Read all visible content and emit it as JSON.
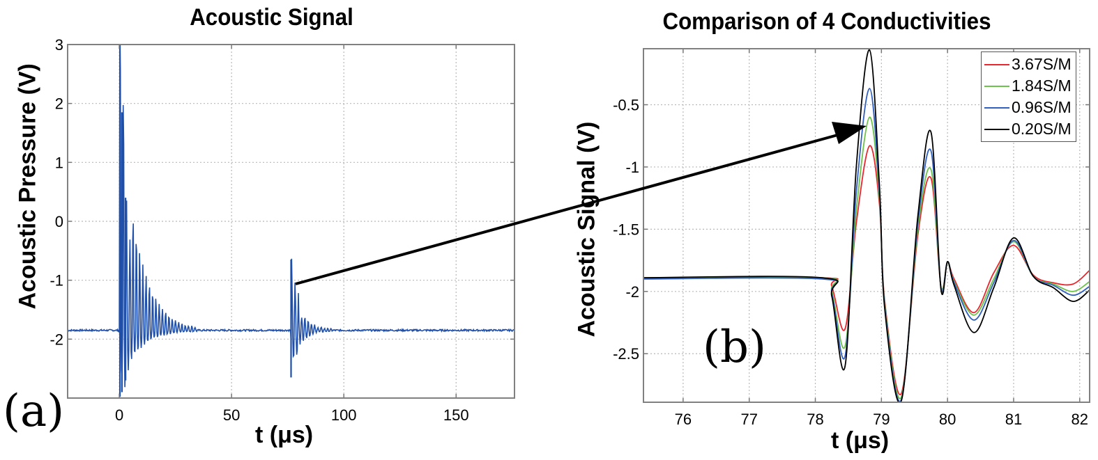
{
  "figure": {
    "panel_a_letter": "(a)",
    "panel_b_letter": "(b)"
  },
  "panel_a": {
    "title": "Acoustic Signal",
    "xlabel": "t (μs)",
    "ylabel": "Acoustic Pressure (V)"
  },
  "panel_b": {
    "title": "Comparison of 4 Conductivities",
    "xlabel": "t (μs)",
    "ylabel": "Acoustic Signal (V)",
    "legend": [
      {
        "label": "3.67S/M",
        "color": "#e8262d"
      },
      {
        "label": "1.84S/M",
        "color": "#6cc24a"
      },
      {
        "label": "0.96S/M",
        "color": "#2f5fbf"
      },
      {
        "label": "0.20S/M",
        "color": "#000000"
      }
    ]
  },
  "annotation": {
    "type": "arrow",
    "from_panel": "a",
    "from_point_us": 76.5,
    "to_panel": "b",
    "description": "zoom of echo burst near t = 77–82 μs"
  },
  "chart_data": [
    {
      "type": "line",
      "title": "Acoustic Signal",
      "xlabel": "t (μs)",
      "ylabel": "Acoustic Pressure (V)",
      "xlim": [
        -23,
        176
      ],
      "ylim": [
        -3,
        3
      ],
      "xticks": [
        0,
        50,
        100,
        150
      ],
      "yticks": [
        -2,
        -1,
        0,
        1,
        2,
        3
      ],
      "grid": true,
      "color": "#1f4fa8",
      "baseline": -1.85,
      "bursts": [
        {
          "onset": 0.0,
          "peak_max": 3.0,
          "peak_min": -2.98,
          "secondary_peaks": [
            1.85,
            0.45,
            -0.2
          ],
          "decay_end": 35
        },
        {
          "onset": 76.5,
          "peak_max": -0.65,
          "peak_min": -2.65,
          "decay_end": 95
        }
      ],
      "series": [
        {
          "name": "Acoustic pressure",
          "color": "#1f4fa8"
        }
      ]
    },
    {
      "type": "line",
      "title": "Comparison of 4 Conductivities",
      "xlabel": "t (μs)",
      "ylabel": "Acoustic Signal (V)",
      "xlim": [
        75.4,
        82.15
      ],
      "ylim": [
        -2.89,
        -0.05
      ],
      "xticks": [
        76,
        77,
        78,
        79,
        80,
        81,
        82
      ],
      "yticks": [
        -0.5,
        -1,
        -1.5,
        -2,
        -2.5
      ],
      "ytick_labels": [
        "-0.5",
        "-1",
        "-1.5",
        "-2",
        "-2.5"
      ],
      "grid": true,
      "legend_position": "upper right",
      "x": [
        75.4,
        78.1,
        78.25,
        78.45,
        78.62,
        78.82,
        78.97,
        79.05,
        79.3,
        79.55,
        79.75,
        79.9,
        80.0,
        80.1,
        80.4,
        80.7,
        81.0,
        81.3,
        81.6,
        81.9,
        82.15
      ],
      "series": [
        {
          "name": "3.67S/M",
          "color": "#e8262d",
          "values": [
            -1.89,
            -1.89,
            -1.96,
            -2.3,
            -1.45,
            -0.83,
            -1.3,
            -2.08,
            -2.82,
            -1.55,
            -1.09,
            -1.96,
            -1.77,
            -1.9,
            -2.17,
            -1.85,
            -1.63,
            -1.87,
            -1.93,
            -1.94,
            -1.83
          ]
        },
        {
          "name": "1.84S/M",
          "color": "#6cc24a",
          "values": [
            -1.89,
            -1.89,
            -2.0,
            -2.44,
            -1.35,
            -0.6,
            -1.25,
            -2.1,
            -2.85,
            -1.5,
            -1.02,
            -1.96,
            -1.77,
            -1.92,
            -2.19,
            -1.9,
            -1.6,
            -1.88,
            -1.94,
            -2.0,
            -1.92
          ]
        },
        {
          "name": "0.96S/M",
          "color": "#2f5fbf",
          "values": [
            -1.9,
            -1.9,
            -2.02,
            -2.52,
            -1.2,
            -0.37,
            -1.2,
            -2.12,
            -2.87,
            -1.45,
            -0.87,
            -1.97,
            -1.76,
            -1.93,
            -2.23,
            -1.93,
            -1.59,
            -1.88,
            -1.95,
            -2.03,
            -1.96
          ]
        },
        {
          "name": "0.20S/M",
          "color": "#000000",
          "values": [
            -1.89,
            -1.89,
            -2.04,
            -2.6,
            -1.0,
            -0.06,
            -1.15,
            -2.14,
            -2.88,
            -1.4,
            -0.72,
            -1.98,
            -1.76,
            -1.95,
            -2.33,
            -1.97,
            -1.57,
            -1.88,
            -1.97,
            -2.08,
            -1.99
          ]
        }
      ]
    }
  ]
}
